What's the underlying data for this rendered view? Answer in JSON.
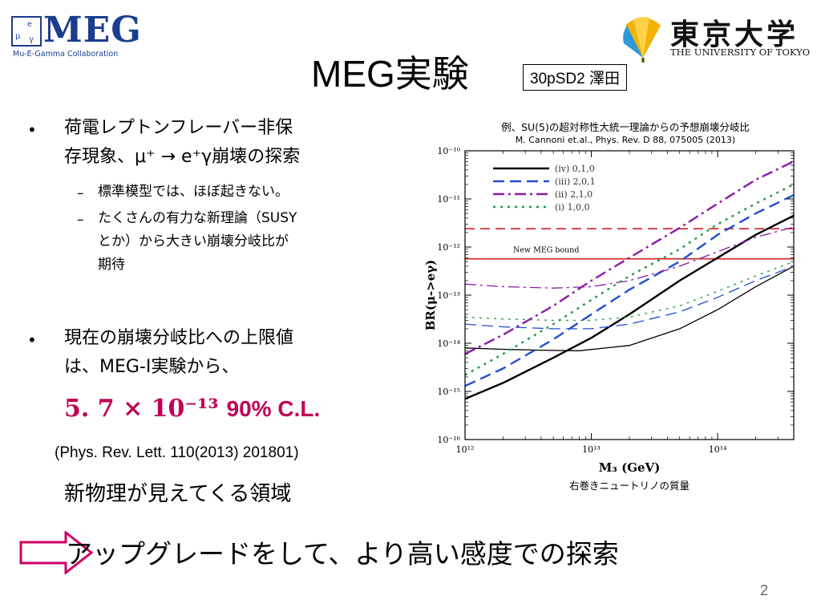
{
  "header": {
    "meg_logo_word": "MEG",
    "meg_logo_sub": "Mu-E-Gamma Collaboration",
    "tokyo_logo_kanji": "東京大学",
    "tokyo_logo_english": "THE UNIVERSITY OF TOKYO",
    "title": "MEG実験",
    "author": "30pSD2 澤田"
  },
  "bullets": [
    {
      "lines": [
        "荷電レプトンフレーバー非保",
        "存現象、μ⁺ → e⁺γ崩壊の探索"
      ],
      "sub": [
        {
          "lines": [
            "標準模型では、ほぼ起きない。"
          ]
        },
        {
          "lines": [
            "たくさんの有力な新理論（SUSY",
            "とか）から大きい崩壊分岐比が",
            "期待"
          ]
        }
      ]
    },
    {
      "lines": [
        "現在の崩壊分岐比への上限値",
        "は、MEG-I実験から、"
      ]
    }
  ],
  "result": {
    "value": "5. 7 × 10⁻¹³",
    "cl": "90% C.L.",
    "reference": "(Phys. Rev. Lett. 110(2013) 201801)",
    "new_physics": "新物理が見えてくる領域"
  },
  "chart_caption": "例、SU(5)の超対称性大統一理論からの予想崩壊分岐比",
  "chart_citation": "M. Cannoni et.al., Phys. Rev. D 88, 075005 (2013)",
  "chart_note": "右巻きニュートリノの質量",
  "bottom_statement": "アップグレードをして、より高い感度での探索",
  "page_number": "2",
  "colors": {
    "meg_blue": "#1a3d8f",
    "highlight": "#c00055",
    "arrow": "#cc0066",
    "tokyo_gold": "#f2b400",
    "tokyo_blue": "#2f9ad8"
  },
  "chart_data": {
    "type": "line",
    "xlabel": "M₃ (GeV)",
    "ylabel": "BR(μ->eγ)",
    "x_scale": "log",
    "y_scale": "log",
    "xlim": [
      1000000000000.0,
      400000000000000.0
    ],
    "ylim": [
      1e-16,
      1e-10
    ],
    "x_ticks": [
      {
        "v": 1000000000000.0,
        "label": "10¹²"
      },
      {
        "v": 10000000000000.0,
        "label": "10¹³"
      },
      {
        "v": 100000000000000.0,
        "label": "10¹⁴"
      }
    ],
    "y_ticks": [
      {
        "v": 1e-10,
        "label": "10⁻¹⁰"
      },
      {
        "v": 1e-11,
        "label": "10⁻¹¹"
      },
      {
        "v": 1e-12,
        "label": "10⁻¹²"
      },
      {
        "v": 1e-13,
        "label": "10⁻¹³"
      },
      {
        "v": 1e-14,
        "label": "10⁻¹⁴"
      },
      {
        "v": 1e-15,
        "label": "10⁻¹⁵"
      },
      {
        "v": 1e-16,
        "label": "10⁻¹⁶"
      }
    ],
    "legend_position": "top-left",
    "series": [
      {
        "name": "(iv) 0,1,0",
        "color": "#000000",
        "dash": "",
        "upper": [
          [
            1000000000000.0,
            8e-15
          ],
          [
            2000000000000.0,
            7.5e-15
          ],
          [
            4000000000000.0,
            7.2e-15
          ],
          [
            8000000000000.0,
            7e-15
          ],
          [
            20000000000000.0,
            9e-15
          ],
          [
            50000000000000.0,
            2e-14
          ],
          [
            100000000000000.0,
            5e-14
          ],
          [
            200000000000000.0,
            1.5e-13
          ],
          [
            400000000000000.0,
            4e-13
          ]
        ],
        "lower": [
          [
            1000000000000.0,
            7e-16
          ],
          [
            2000000000000.0,
            1.5e-15
          ],
          [
            5000000000000.0,
            5e-15
          ],
          [
            10000000000000.0,
            1.3e-14
          ],
          [
            20000000000000.0,
            4e-14
          ],
          [
            50000000000000.0,
            2e-13
          ],
          [
            100000000000000.0,
            6e-13
          ],
          [
            200000000000000.0,
            1.8e-12
          ],
          [
            400000000000000.0,
            4.5e-12
          ]
        ]
      },
      {
        "name": "(iii) 2,0,1",
        "color": "#1f4fd0",
        "dash": "14,7",
        "upper": [
          [
            1000000000000.0,
            2.5e-14
          ],
          [
            2000000000000.0,
            2.2e-14
          ],
          [
            5000000000000.0,
            2e-14
          ],
          [
            10000000000000.0,
            2e-14
          ],
          [
            20000000000000.0,
            2.5e-14
          ],
          [
            50000000000000.0,
            4.5e-14
          ],
          [
            100000000000000.0,
            9e-14
          ],
          [
            200000000000000.0,
            2e-13
          ],
          [
            400000000000000.0,
            4e-13
          ]
        ],
        "lower": [
          [
            1000000000000.0,
            1.3e-15
          ],
          [
            2000000000000.0,
            3e-15
          ],
          [
            5000000000000.0,
            1.2e-14
          ],
          [
            10000000000000.0,
            4e-14
          ],
          [
            20000000000000.0,
            1.3e-13
          ],
          [
            50000000000000.0,
            5e-13
          ],
          [
            100000000000000.0,
            1.8e-12
          ],
          [
            200000000000000.0,
            5e-12
          ],
          [
            400000000000000.0,
            1.2e-11
          ]
        ]
      },
      {
        "name": "(ii) 2,1,0",
        "color": "#8a1aa8",
        "dash": "14,5,3,5",
        "upper": [
          [
            1000000000000.0,
            1.7e-13
          ],
          [
            2000000000000.0,
            1.5e-13
          ],
          [
            5000000000000.0,
            1.4e-13
          ],
          [
            10000000000000.0,
            1.5e-13
          ],
          [
            20000000000000.0,
            2e-13
          ],
          [
            50000000000000.0,
            4e-13
          ],
          [
            100000000000000.0,
            8e-13
          ],
          [
            200000000000000.0,
            1.6e-12
          ],
          [
            400000000000000.0,
            2.6e-12
          ]
        ],
        "lower": [
          [
            1000000000000.0,
            6e-15
          ],
          [
            2000000000000.0,
            1.5e-14
          ],
          [
            5000000000000.0,
            6e-14
          ],
          [
            10000000000000.0,
            2e-13
          ],
          [
            20000000000000.0,
            6e-13
          ],
          [
            50000000000000.0,
            2.5e-12
          ],
          [
            100000000000000.0,
            8e-12
          ],
          [
            200000000000000.0,
            2.5e-11
          ],
          [
            400000000000000.0,
            6e-11
          ]
        ]
      },
      {
        "name": "(i) 1,0,0",
        "color": "#1e9a3a",
        "dash": "3,6",
        "upper": [
          [
            1000000000000.0,
            3.5e-14
          ],
          [
            2000000000000.0,
            3.2e-14
          ],
          [
            5000000000000.0,
            3e-14
          ],
          [
            10000000000000.0,
            3e-14
          ],
          [
            20000000000000.0,
            3.5e-14
          ],
          [
            50000000000000.0,
            6e-14
          ],
          [
            100000000000000.0,
            1.2e-13
          ],
          [
            200000000000000.0,
            2.5e-13
          ],
          [
            400000000000000.0,
            5e-13
          ]
        ],
        "lower": [
          [
            1000000000000.0,
            2.2e-15
          ],
          [
            2000000000000.0,
            6e-15
          ],
          [
            5000000000000.0,
            2.5e-14
          ],
          [
            10000000000000.0,
            8e-14
          ],
          [
            20000000000000.0,
            2.5e-13
          ],
          [
            50000000000000.0,
            9e-13
          ],
          [
            100000000000000.0,
            3e-12
          ],
          [
            200000000000000.0,
            8e-12
          ],
          [
            400000000000000.0,
            2e-11
          ]
        ]
      }
    ],
    "bounds": [
      {
        "label": "New MEG bound",
        "value": 5.7e-13,
        "color": "#d42020",
        "dash": ""
      },
      {
        "label": "",
        "value": 2.4e-12,
        "color": "#d42020",
        "dash": "12,7"
      }
    ]
  }
}
